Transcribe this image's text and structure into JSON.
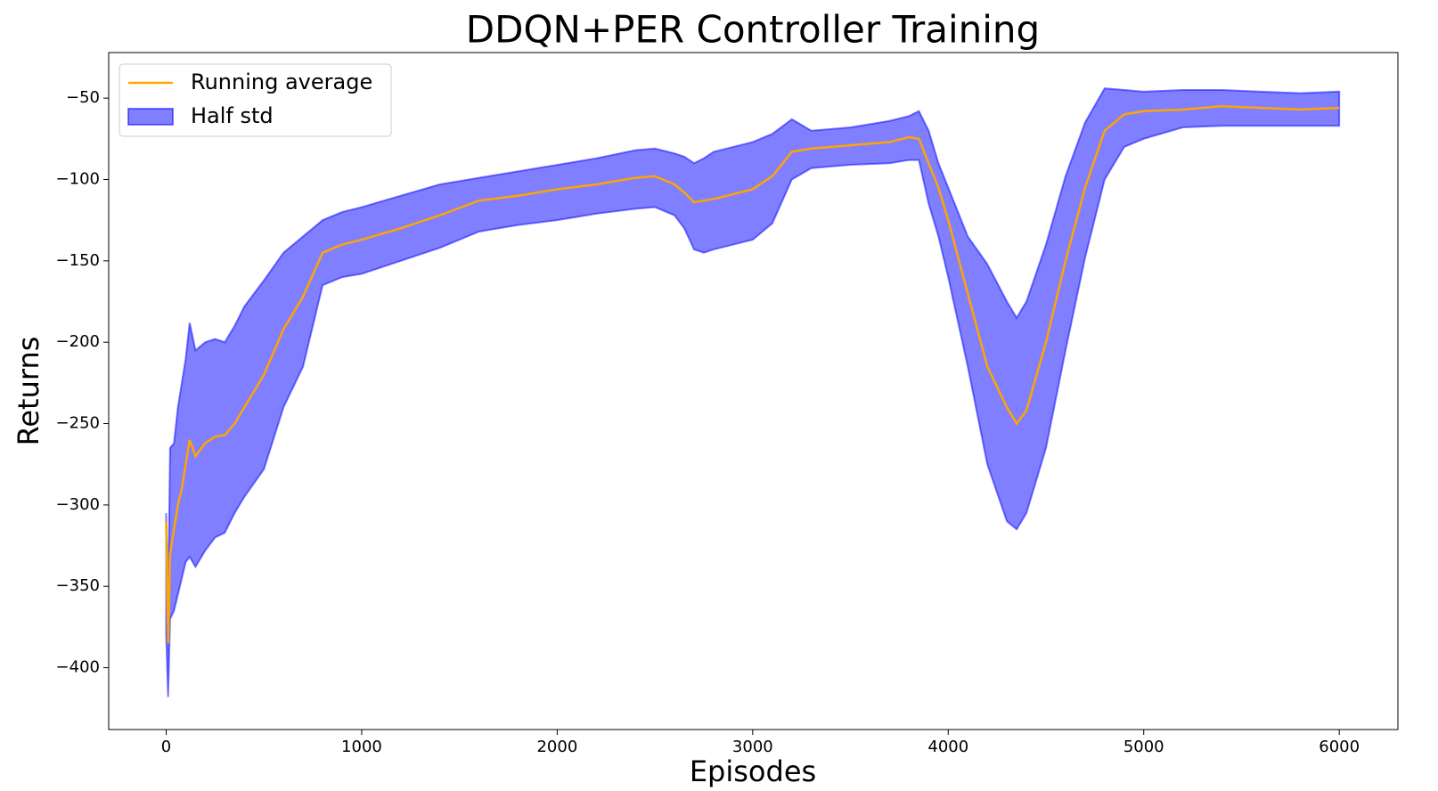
{
  "chart_data": {
    "type": "line",
    "title": "DDQN+PER Controller Training",
    "x_label": "Episodes",
    "y_label": "Returns",
    "x": [
      0,
      10,
      20,
      40,
      60,
      80,
      100,
      120,
      150,
      200,
      250,
      300,
      350,
      400,
      500,
      600,
      700,
      800,
      900,
      1000,
      1200,
      1400,
      1600,
      1800,
      2000,
      2200,
      2400,
      2500,
      2600,
      2650,
      2700,
      2750,
      2800,
      3000,
      3100,
      3200,
      3300,
      3500,
      3700,
      3800,
      3850,
      3900,
      3950,
      4000,
      4100,
      4200,
      4300,
      4350,
      4400,
      4500,
      4600,
      4700,
      4800,
      4900,
      5000,
      5200,
      5400,
      5600,
      5800,
      6000
    ],
    "series": [
      {
        "name": "Running average",
        "color": "#ffa500",
        "values": [
          -310,
          -385,
          -330,
          -315,
          -300,
          -290,
          -275,
          -260,
          -270,
          -262,
          -258,
          -257,
          -250,
          -240,
          -220,
          -192,
          -172,
          -145,
          -140,
          -137,
          -130,
          -122,
          -113,
          -110,
          -106,
          -103,
          -99,
          -98,
          -103,
          -108,
          -114,
          -113,
          -112,
          -106,
          -98,
          -83,
          -81,
          -79,
          -77,
          -74,
          -75,
          -90,
          -105,
          -125,
          -170,
          -215,
          -240,
          -250,
          -242,
          -200,
          -150,
          -105,
          -70,
          -60,
          -58,
          -57,
          -55,
          -56,
          -57,
          -56
        ]
      },
      {
        "name": "Half std",
        "type": "band",
        "color": "#0000ff",
        "upper": [
          -305,
          -360,
          -265,
          -262,
          -240,
          -225,
          -210,
          -188,
          -205,
          -200,
          -198,
          -200,
          -190,
          -178,
          -162,
          -145,
          -135,
          -125,
          -120,
          -117,
          -110,
          -103,
          -99,
          -95,
          -91,
          -87,
          -82,
          -81,
          -84,
          -86,
          -90,
          -87,
          -83,
          -77,
          -72,
          -63,
          -70,
          -68,
          -64,
          -61,
          -58,
          -70,
          -90,
          -105,
          -135,
          -152,
          -175,
          -185,
          -175,
          -140,
          -98,
          -65,
          -44,
          -45,
          -46,
          -45,
          -45,
          -46,
          -47,
          -46
        ],
        "lower": [
          -380,
          -418,
          -370,
          -365,
          -355,
          -345,
          -335,
          -332,
          -338,
          -328,
          -320,
          -317,
          -305,
          -295,
          -278,
          -240,
          -215,
          -165,
          -160,
          -158,
          -150,
          -142,
          -132,
          -128,
          -125,
          -121,
          -118,
          -117,
          -122,
          -130,
          -143,
          -145,
          -143,
          -137,
          -127,
          -100,
          -93,
          -91,
          -90,
          -88,
          -88,
          -115,
          -135,
          -160,
          -215,
          -275,
          -310,
          -315,
          -305,
          -265,
          -205,
          -148,
          -100,
          -80,
          -75,
          -68,
          -67,
          -67,
          -67,
          -67
        ]
      }
    ],
    "xlim": [
      -294,
      6300
    ],
    "ylim": [
      -438,
      -22
    ],
    "xticks": [
      0,
      1000,
      2000,
      3000,
      4000,
      5000,
      6000
    ],
    "yticks": [
      {
        "value": -50,
        "label": "−50"
      },
      {
        "value": -100,
        "label": "−100"
      },
      {
        "value": -150,
        "label": "−150"
      },
      {
        "value": -200,
        "label": "−200"
      },
      {
        "value": -250,
        "label": "−250"
      },
      {
        "value": -300,
        "label": "−300"
      },
      {
        "value": -350,
        "label": "−350"
      },
      {
        "value": -400,
        "label": "−400"
      }
    ],
    "legend": "upper left"
  }
}
